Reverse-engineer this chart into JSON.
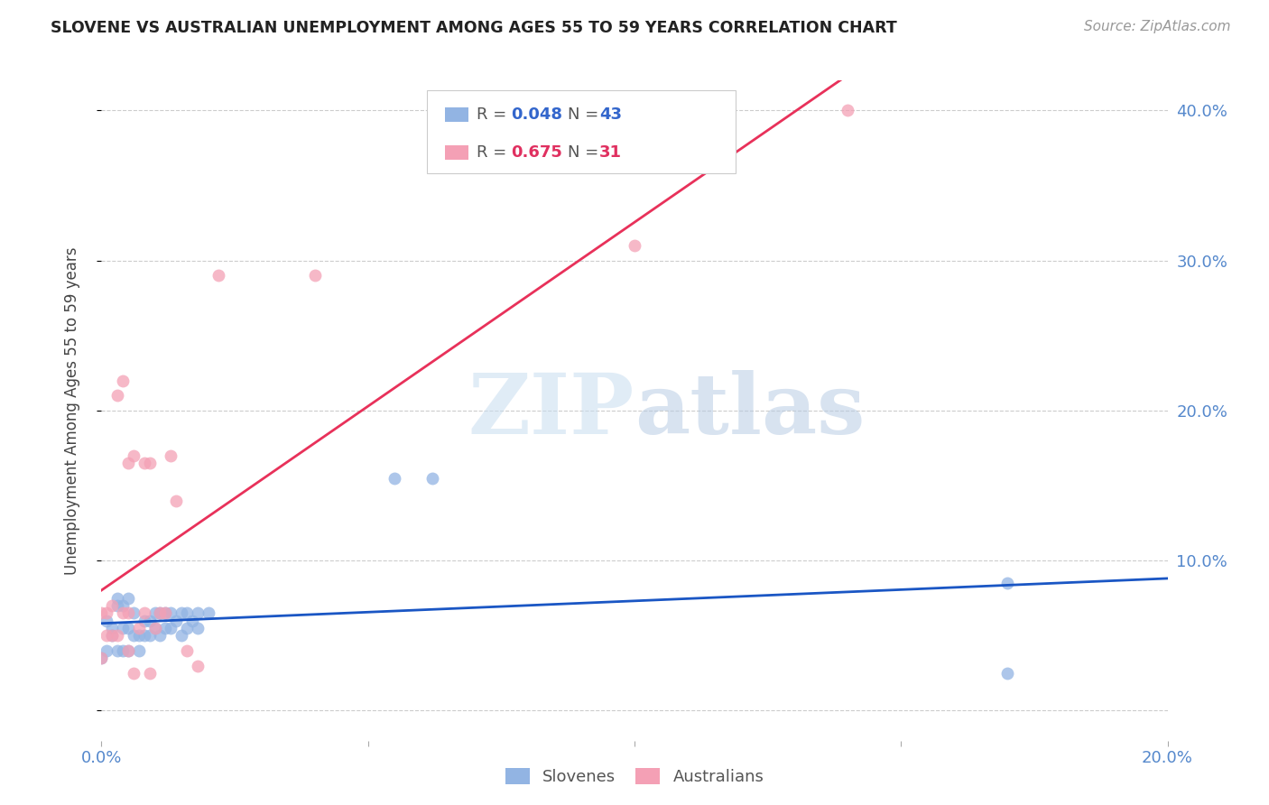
{
  "title": "SLOVENE VS AUSTRALIAN UNEMPLOYMENT AMONG AGES 55 TO 59 YEARS CORRELATION CHART",
  "source": "Source: ZipAtlas.com",
  "ylabel": "Unemployment Among Ages 55 to 59 years",
  "xmin": 0.0,
  "xmax": 0.2,
  "ymin": -0.02,
  "ymax": 0.42,
  "slovene_color": "#92b4e3",
  "australian_color": "#f4a0b5",
  "trendline_slovene_color": "#1a56c4",
  "trendline_australian_color": "#e8315a",
  "watermark": "ZIPatlas",
  "slovene_x": [
    0.0,
    0.001,
    0.001,
    0.002,
    0.002,
    0.003,
    0.003,
    0.003,
    0.004,
    0.004,
    0.004,
    0.005,
    0.005,
    0.005,
    0.006,
    0.006,
    0.007,
    0.007,
    0.008,
    0.008,
    0.009,
    0.009,
    0.01,
    0.01,
    0.011,
    0.011,
    0.012,
    0.012,
    0.013,
    0.013,
    0.014,
    0.015,
    0.015,
    0.016,
    0.016,
    0.017,
    0.018,
    0.018,
    0.02,
    0.055,
    0.062,
    0.17,
    0.17
  ],
  "slovene_y": [
    0.035,
    0.04,
    0.06,
    0.05,
    0.055,
    0.04,
    0.07,
    0.075,
    0.04,
    0.055,
    0.07,
    0.04,
    0.055,
    0.075,
    0.05,
    0.065,
    0.04,
    0.05,
    0.05,
    0.06,
    0.05,
    0.06,
    0.055,
    0.065,
    0.05,
    0.065,
    0.055,
    0.065,
    0.055,
    0.065,
    0.06,
    0.05,
    0.065,
    0.055,
    0.065,
    0.06,
    0.055,
    0.065,
    0.065,
    0.155,
    0.155,
    0.025,
    0.085
  ],
  "australian_x": [
    0.0,
    0.0,
    0.001,
    0.001,
    0.002,
    0.002,
    0.003,
    0.003,
    0.004,
    0.004,
    0.005,
    0.005,
    0.005,
    0.006,
    0.006,
    0.007,
    0.008,
    0.008,
    0.009,
    0.009,
    0.01,
    0.011,
    0.012,
    0.013,
    0.014,
    0.016,
    0.018,
    0.022,
    0.04,
    0.1,
    0.14
  ],
  "australian_y": [
    0.035,
    0.065,
    0.05,
    0.065,
    0.05,
    0.07,
    0.05,
    0.21,
    0.065,
    0.22,
    0.04,
    0.065,
    0.165,
    0.025,
    0.17,
    0.055,
    0.065,
    0.165,
    0.025,
    0.165,
    0.055,
    0.065,
    0.065,
    0.17,
    0.14,
    0.04,
    0.03,
    0.29,
    0.29,
    0.31,
    0.4
  ]
}
